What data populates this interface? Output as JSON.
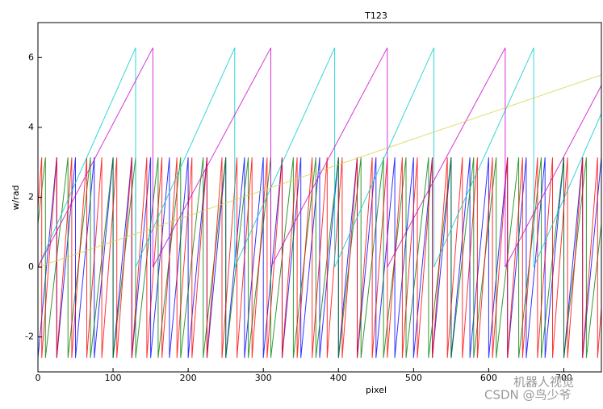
{
  "chart_data": {
    "type": "line",
    "title": "T123",
    "x_label": "pixel",
    "y_label": "w/rad",
    "xlim": [
      0,
      750
    ],
    "ylim": [
      -3,
      7
    ],
    "xticks": [
      0,
      100,
      200,
      300,
      400,
      500,
      600,
      700
    ],
    "yticks": [
      -2,
      0,
      2,
      4,
      6
    ],
    "watermark": [
      "机器人视觉",
      "CSDN @鸟少爷"
    ],
    "series": [
      {
        "color": "#0000ff",
        "x": [
          0,
          25,
          25,
          50,
          50,
          75,
          75,
          100,
          100,
          125,
          125,
          150,
          150,
          175,
          175,
          200,
          200,
          225,
          225,
          250,
          250,
          275,
          275,
          300,
          300,
          325,
          325,
          350,
          350,
          375,
          375,
          400,
          400,
          425,
          425,
          450,
          450,
          475,
          475,
          500,
          500,
          525,
          525,
          550,
          550,
          575,
          575,
          600,
          600,
          625,
          625,
          650,
          650,
          675,
          675,
          700,
          700,
          725,
          725,
          750
        ],
        "y": [
          -2.6,
          3.14,
          -2.6,
          3.14,
          -2.6,
          3.14,
          -2.6,
          3.14,
          -2.6,
          3.14,
          -2.6,
          3.14,
          -2.6,
          3.14,
          -2.6,
          3.14,
          -2.6,
          3.14,
          -2.6,
          3.14,
          -2.6,
          3.14,
          -2.6,
          3.14,
          -2.6,
          3.14,
          -2.6,
          3.14,
          -2.6,
          3.14,
          -2.6,
          3.14,
          -2.6,
          3.14,
          -2.6,
          3.14,
          -2.6,
          3.14,
          -2.6,
          3.14,
          -2.6,
          3.14,
          -2.6,
          3.14,
          -2.6,
          3.14,
          -2.6,
          3.14,
          -2.6,
          3.14,
          -2.6,
          3.14,
          -2.6,
          3.14,
          -2.6,
          3.14,
          -2.6,
          3.14,
          -2.6,
          3.14
        ]
      },
      {
        "color": "#008000",
        "x": [
          0,
          10,
          10,
          40,
          40,
          70,
          70,
          100,
          100,
          130,
          130,
          160,
          160,
          190,
          190,
          220,
          220,
          250,
          250,
          280,
          280,
          310,
          310,
          340,
          340,
          370,
          370,
          400,
          400,
          430,
          430,
          460,
          460,
          490,
          490,
          520,
          520,
          550,
          550,
          580,
          580,
          610,
          610,
          640,
          640,
          670,
          670,
          700,
          700,
          730,
          730,
          750
        ],
        "y": [
          1.23,
          3.14,
          -2.6,
          3.14,
          -2.6,
          3.14,
          -2.6,
          3.14,
          -2.6,
          3.14,
          -2.6,
          3.14,
          -2.6,
          3.14,
          -2.6,
          3.14,
          -2.6,
          3.14,
          -2.6,
          3.14,
          -2.6,
          3.14,
          -2.6,
          3.14,
          -2.6,
          3.14,
          -2.6,
          3.14,
          -2.6,
          3.14,
          -2.6,
          3.14,
          -2.6,
          3.14,
          -2.6,
          3.14,
          -2.6,
          3.14,
          -2.6,
          3.14,
          -2.6,
          3.14,
          -2.6,
          3.14,
          -2.6,
          3.14,
          -2.6,
          3.14,
          -2.6,
          3.14,
          -2.6,
          1.23
        ]
      },
      {
        "color": "#ff0000",
        "x": [
          0,
          5,
          5,
          25,
          25,
          45,
          45,
          65,
          65,
          85,
          85,
          105,
          105,
          125,
          125,
          145,
          145,
          165,
          165,
          185,
          185,
          205,
          205,
          225,
          225,
          245,
          245,
          265,
          265,
          285,
          285,
          305,
          305,
          325,
          325,
          345,
          345,
          365,
          365,
          385,
          385,
          405,
          405,
          425,
          425,
          445,
          445,
          465,
          465,
          485,
          485,
          505,
          505,
          525,
          525,
          545,
          545,
          565,
          565,
          585,
          585,
          605,
          605,
          625,
          625,
          645,
          645,
          665,
          665,
          685,
          685,
          705,
          705,
          725,
          725,
          745,
          745,
          750
        ],
        "y": [
          1.7,
          3.14,
          -2.6,
          3.14,
          -2.6,
          3.14,
          -2.6,
          3.14,
          -2.6,
          3.14,
          -2.6,
          3.14,
          -2.6,
          3.14,
          -2.6,
          3.14,
          -2.6,
          3.14,
          -2.6,
          3.14,
          -2.6,
          3.14,
          -2.6,
          3.14,
          -2.6,
          3.14,
          -2.6,
          3.14,
          -2.6,
          3.14,
          -2.6,
          3.14,
          -2.6,
          3.14,
          -2.6,
          3.14,
          -2.6,
          3.14,
          -2.6,
          3.14,
          -2.6,
          3.14,
          -2.6,
          3.14,
          -2.6,
          3.14,
          -2.6,
          3.14,
          -2.6,
          3.14,
          -2.6,
          3.14,
          -2.6,
          3.14,
          -2.6,
          3.14,
          -2.6,
          3.14,
          -2.6,
          3.14,
          -2.6,
          3.14,
          -2.6,
          3.14,
          -2.6,
          3.14,
          -2.6,
          3.14,
          -2.6,
          3.14,
          -2.6,
          3.14,
          -2.6,
          3.14,
          -2.6,
          3.14,
          -2.6,
          -1.17
        ]
      },
      {
        "color": "#00cccc",
        "x": [
          0,
          130,
          130,
          262,
          262,
          395,
          395,
          527,
          527,
          660,
          660,
          750
        ],
        "y": [
          0,
          6.28,
          0,
          6.28,
          0,
          6.28,
          0,
          6.28,
          0,
          6.28,
          0,
          4.4
        ]
      },
      {
        "color": "#cc00cc",
        "x": [
          0,
          153,
          153,
          310,
          310,
          465,
          465,
          622,
          622,
          750
        ],
        "y": [
          0,
          6.28,
          0,
          6.28,
          0,
          6.28,
          0,
          6.28,
          0,
          5.2
        ]
      },
      {
        "color": "#d4d44a",
        "x": [
          0,
          750
        ],
        "y": [
          0,
          5.5
        ]
      }
    ]
  }
}
